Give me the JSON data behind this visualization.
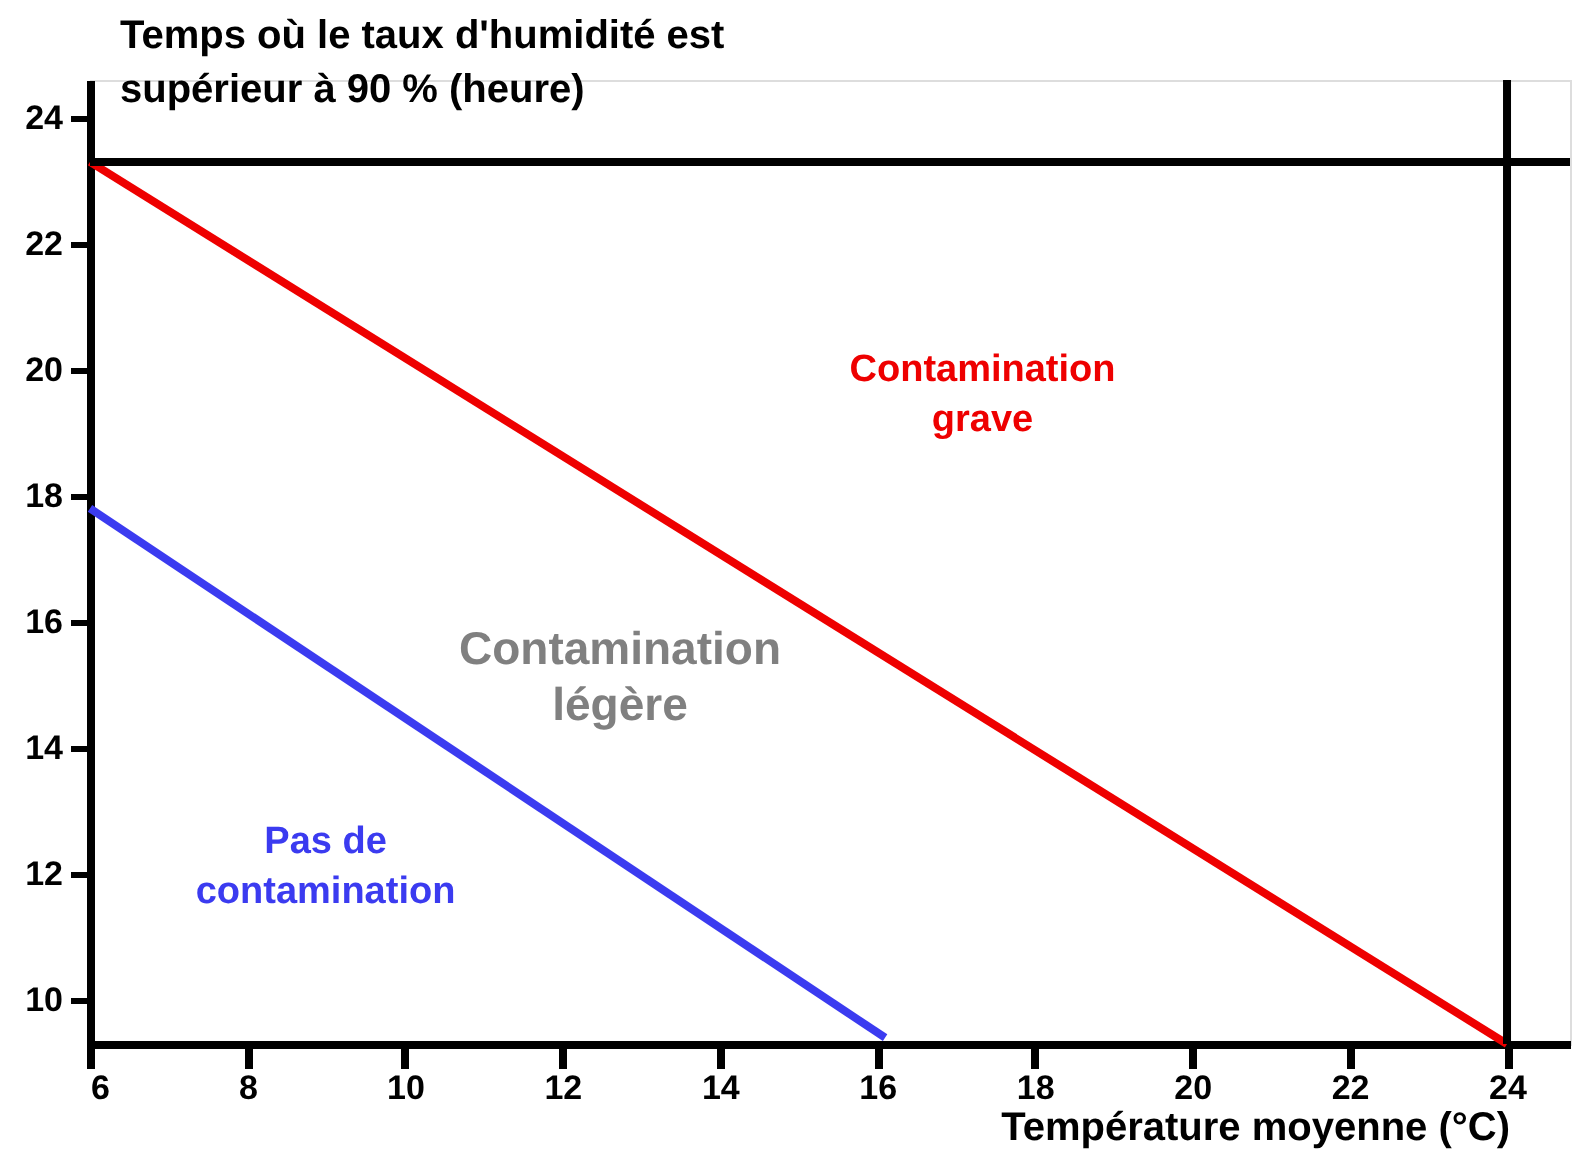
{
  "chart_data": {
    "type": "line",
    "xlabel": "Température moyenne (°C)",
    "ylabel": "Temps où le taux d'humidité est supérieur à 90 % (heure)",
    "annotations": [
      "Contamination légère"
    ],
    "series": [
      {
        "name": "Contamination grave",
        "color": "#ee0000",
        "x": [
          6,
          24
        ],
        "values": [
          23.3,
          9.3
        ]
      },
      {
        "name": "Pas de contamination",
        "color": "#3b3bf0",
        "x": [
          6,
          16.1
        ],
        "values": [
          17.8,
          9.4
        ]
      }
    ],
    "ref_lines": [
      {
        "axis": "y",
        "value": 23.3,
        "color": "#000000"
      },
      {
        "axis": "x",
        "value": 24,
        "color": "#000000"
      }
    ],
    "xlim": [
      6,
      24.8
    ],
    "xticks": [
      6,
      8,
      10,
      12,
      14,
      16,
      18,
      20,
      22,
      24
    ],
    "ylim": [
      9.3,
      24.6
    ],
    "yticks": [
      10,
      12,
      14,
      16,
      18,
      20,
      22,
      24
    ],
    "grid": false,
    "marker": "none",
    "line_style": "solid"
  }
}
